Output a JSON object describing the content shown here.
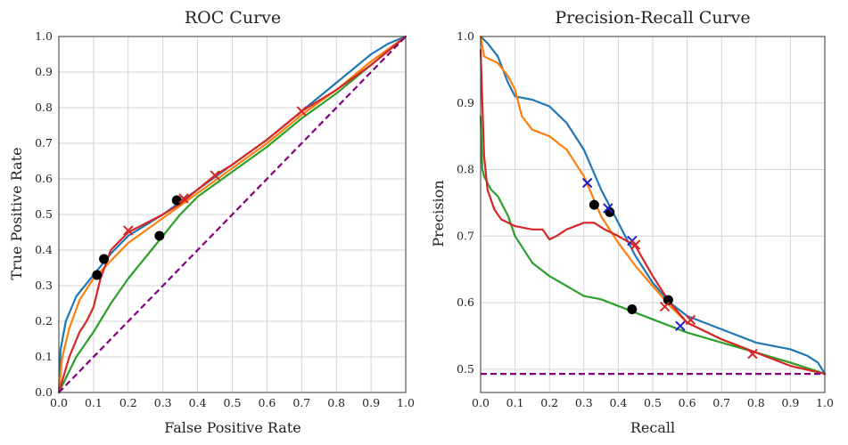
{
  "chart_data": [
    {
      "type": "line",
      "title": "ROC Curve",
      "xlabel": "False Positive Rate",
      "ylabel": "True Positive Rate",
      "xlim": [
        0,
        1
      ],
      "ylim": [
        0,
        1
      ],
      "grid": true,
      "xticks": [
        "0.0",
        "0.1",
        "0.2",
        "0.3",
        "0.4",
        "0.5",
        "0.6",
        "0.7",
        "0.8",
        "0.9",
        "1.0"
      ],
      "yticks": [
        "0.0",
        "0.1",
        "0.2",
        "0.3",
        "0.4",
        "0.5",
        "0.6",
        "0.7",
        "0.8",
        "0.9",
        "1.0"
      ],
      "series": [
        {
          "name": "blue",
          "color": "#1f77b4",
          "x": [
            0,
            0.005,
            0.02,
            0.05,
            0.1,
            0.15,
            0.2,
            0.3,
            0.4,
            0.5,
            0.6,
            0.7,
            0.8,
            0.85,
            0.9,
            0.95,
            1.0
          ],
          "y": [
            0,
            0.12,
            0.2,
            0.27,
            0.33,
            0.39,
            0.44,
            0.5,
            0.57,
            0.64,
            0.71,
            0.79,
            0.87,
            0.91,
            0.95,
            0.98,
            1.0
          ]
        },
        {
          "name": "orange",
          "color": "#ff7f0e",
          "x": [
            0,
            0.01,
            0.03,
            0.06,
            0.1,
            0.15,
            0.2,
            0.3,
            0.4,
            0.5,
            0.6,
            0.7,
            0.8,
            0.9,
            1.0
          ],
          "y": [
            0,
            0.1,
            0.18,
            0.26,
            0.32,
            0.37,
            0.42,
            0.49,
            0.56,
            0.63,
            0.7,
            0.78,
            0.85,
            0.93,
            1.0
          ]
        },
        {
          "name": "green",
          "color": "#2ca02c",
          "x": [
            0,
            0.05,
            0.1,
            0.15,
            0.2,
            0.25,
            0.3,
            0.35,
            0.4,
            0.5,
            0.6,
            0.7,
            0.8,
            0.9,
            1.0
          ],
          "y": [
            0,
            0.1,
            0.17,
            0.25,
            0.32,
            0.38,
            0.44,
            0.5,
            0.55,
            0.62,
            0.69,
            0.77,
            0.84,
            0.92,
            1.0
          ]
        },
        {
          "name": "red",
          "color": "#d62728",
          "x": [
            0,
            0.03,
            0.06,
            0.08,
            0.1,
            0.12,
            0.15,
            0.2,
            0.3,
            0.35,
            0.4,
            0.45,
            0.5,
            0.6,
            0.7,
            0.8,
            0.9,
            1.0
          ],
          "y": [
            0,
            0.1,
            0.17,
            0.2,
            0.24,
            0.32,
            0.4,
            0.45,
            0.5,
            0.53,
            0.57,
            0.61,
            0.64,
            0.71,
            0.79,
            0.85,
            0.92,
            1.0
          ]
        },
        {
          "name": "chance",
          "color": "#800080",
          "dashed": true,
          "x": [
            0,
            1
          ],
          "y": [
            0,
            1
          ]
        }
      ],
      "markers": [
        {
          "kind": "dot",
          "color": "#000000",
          "x": 0.11,
          "y": 0.33
        },
        {
          "kind": "dot",
          "color": "#000000",
          "x": 0.13,
          "y": 0.375
        },
        {
          "kind": "dot",
          "color": "#000000",
          "x": 0.29,
          "y": 0.44
        },
        {
          "kind": "dot",
          "color": "#000000",
          "x": 0.34,
          "y": 0.54
        },
        {
          "kind": "x",
          "color": "#d62728",
          "x": 0.2,
          "y": 0.455
        },
        {
          "kind": "x",
          "color": "#d62728",
          "x": 0.36,
          "y": 0.545
        },
        {
          "kind": "x",
          "color": "#d62728",
          "x": 0.45,
          "y": 0.61
        },
        {
          "kind": "x",
          "color": "#d62728",
          "x": 0.7,
          "y": 0.79
        }
      ]
    },
    {
      "type": "line",
      "title": "Precision-Recall Curve",
      "xlabel": "Recall",
      "ylabel": "Precision",
      "xlim": [
        0,
        1
      ],
      "ylim": [
        0.465,
        1.0
      ],
      "grid": true,
      "xticks": [
        "0.0",
        "0.1",
        "0.2",
        "0.3",
        "0.4",
        "0.5",
        "0.6",
        "0.7",
        "0.8",
        "0.9",
        "1.0"
      ],
      "yticks": [
        "0.5",
        "0.6",
        "0.7",
        "0.8",
        "0.9",
        "1.0"
      ],
      "series": [
        {
          "name": "blue",
          "color": "#1f77b4",
          "x": [
            0,
            0.02,
            0.05,
            0.08,
            0.1,
            0.15,
            0.2,
            0.25,
            0.3,
            0.35,
            0.4,
            0.45,
            0.5,
            0.55,
            0.6,
            0.7,
            0.8,
            0.9,
            0.95,
            0.98,
            1.0
          ],
          "y": [
            1.0,
            0.99,
            0.97,
            0.93,
            0.91,
            0.905,
            0.895,
            0.87,
            0.83,
            0.77,
            0.72,
            0.67,
            0.63,
            0.6,
            0.58,
            0.56,
            0.54,
            0.53,
            0.52,
            0.51,
            0.493
          ]
        },
        {
          "name": "orange",
          "color": "#ff7f0e",
          "x": [
            0,
            0.01,
            0.03,
            0.05,
            0.08,
            0.1,
            0.12,
            0.15,
            0.2,
            0.25,
            0.3,
            0.35,
            0.4,
            0.45,
            0.5,
            0.55,
            0.6,
            0.7,
            0.8,
            0.9,
            1.0
          ],
          "y": [
            1.0,
            0.97,
            0.965,
            0.96,
            0.94,
            0.92,
            0.88,
            0.86,
            0.85,
            0.83,
            0.79,
            0.73,
            0.69,
            0.655,
            0.625,
            0.595,
            0.57,
            0.545,
            0.525,
            0.51,
            0.493
          ]
        },
        {
          "name": "green",
          "color": "#2ca02c",
          "x": [
            0,
            0.005,
            0.01,
            0.02,
            0.03,
            0.05,
            0.08,
            0.1,
            0.15,
            0.2,
            0.25,
            0.3,
            0.35,
            0.4,
            0.45,
            0.5,
            0.55,
            0.6,
            0.7,
            0.8,
            0.9,
            1.0
          ],
          "y": [
            0.88,
            0.8,
            0.79,
            0.78,
            0.77,
            0.76,
            0.73,
            0.7,
            0.66,
            0.64,
            0.625,
            0.61,
            0.605,
            0.595,
            0.585,
            0.575,
            0.565,
            0.555,
            0.54,
            0.525,
            0.51,
            0.493
          ]
        },
        {
          "name": "red",
          "color": "#d62728",
          "x": [
            0,
            0.005,
            0.01,
            0.02,
            0.04,
            0.06,
            0.08,
            0.1,
            0.15,
            0.18,
            0.2,
            0.22,
            0.25,
            0.3,
            0.33,
            0.36,
            0.4,
            0.45,
            0.5,
            0.55,
            0.6,
            0.7,
            0.8,
            0.9,
            1.0
          ],
          "y": [
            0.98,
            0.9,
            0.82,
            0.77,
            0.74,
            0.725,
            0.72,
            0.715,
            0.71,
            0.71,
            0.695,
            0.7,
            0.71,
            0.72,
            0.72,
            0.71,
            0.7,
            0.685,
            0.64,
            0.6,
            0.57,
            0.545,
            0.525,
            0.505,
            0.493
          ]
        },
        {
          "name": "baseline",
          "color": "#800080",
          "dashed": true,
          "x": [
            0,
            1
          ],
          "y": [
            0.493,
            0.493
          ]
        }
      ],
      "markers": [
        {
          "kind": "dot",
          "color": "#000000",
          "x": 0.33,
          "y": 0.747
        },
        {
          "kind": "dot",
          "color": "#000000",
          "x": 0.375,
          "y": 0.736
        },
        {
          "kind": "dot",
          "color": "#000000",
          "x": 0.44,
          "y": 0.59
        },
        {
          "kind": "dot",
          "color": "#000000",
          "x": 0.545,
          "y": 0.604
        },
        {
          "kind": "x",
          "color": "#1f1fcc",
          "x": 0.31,
          "y": 0.78
        },
        {
          "kind": "x",
          "color": "#1f1fcc",
          "x": 0.37,
          "y": 0.742
        },
        {
          "kind": "x",
          "color": "#1f1fcc",
          "x": 0.44,
          "y": 0.693
        },
        {
          "kind": "x",
          "color": "#1f1fcc",
          "x": 0.58,
          "y": 0.565
        },
        {
          "kind": "x",
          "color": "#d62728",
          "x": 0.45,
          "y": 0.687
        },
        {
          "kind": "x",
          "color": "#d62728",
          "x": 0.535,
          "y": 0.594
        },
        {
          "kind": "x",
          "color": "#d62728",
          "x": 0.61,
          "y": 0.574
        },
        {
          "kind": "x",
          "color": "#d62728",
          "x": 0.79,
          "y": 0.523
        }
      ]
    }
  ]
}
